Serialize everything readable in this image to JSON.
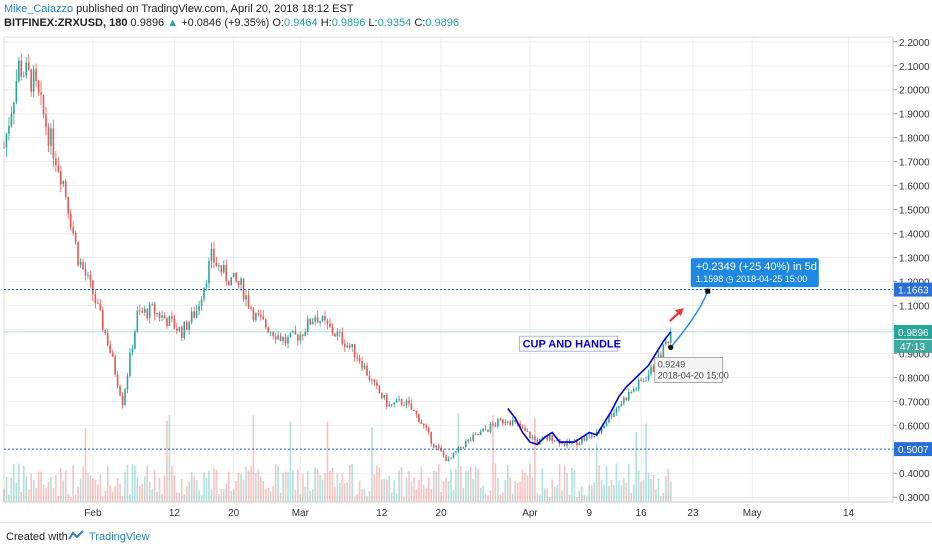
{
  "header": {
    "author": "Mike_Caiazzo",
    "published": "published on TradingView.com, April 20, 2018 18:12 EST",
    "symbol": "BITFINEX:ZRXUSD, 180",
    "last": "0.9896",
    "arrow": "▲",
    "change": "+0.0846 (+9.35%)",
    "o_label": "O:",
    "o": "0.9464",
    "h_label": "H:",
    "h": "0.9896",
    "l_label": "L:",
    "l": "0.9354",
    "c_label": "C:",
    "c": "0.9896"
  },
  "footer": {
    "created": "Created with",
    "brand": "TradingView"
  },
  "colors": {
    "up": "#26a69a",
    "down": "#ef5350",
    "pattern": "#0000d6",
    "projection": "#1e88e5",
    "hline": "#1e5fc4",
    "arrow": "#e53935",
    "label_bg": "#1e88e5",
    "price_tag": "#26a69a",
    "countdown_tag": "#3fa9a3",
    "level_tag": "#2a6fd6",
    "grid": "#eeeeee"
  },
  "chart_data": {
    "type": "candlestick",
    "y_ticks": [
      "2.2000",
      "2.1000",
      "2.0000",
      "1.9000",
      "1.8000",
      "1.7000",
      "1.6000",
      "1.5000",
      "1.4000",
      "1.3000",
      "1.2000",
      "1.1000",
      "1.0000",
      "0.9000",
      "0.8000",
      "0.7000",
      "0.6000",
      "0.5000",
      "0.4000",
      "0.3000"
    ],
    "ylim": [
      0.28,
      2.22
    ],
    "x_ticks": [
      "Feb",
      "12",
      "20",
      "Mar",
      "12",
      "20",
      "Apr",
      "9",
      "16",
      "23",
      "May",
      "14"
    ],
    "x_tick_dates": [
      "2018-02-01",
      "2018-02-12",
      "2018-02-20",
      "2018-03-01",
      "2018-03-12",
      "2018-03-20",
      "2018-04-01",
      "2018-04-09",
      "2018-04-16",
      "2018-04-23",
      "2018-05-01",
      "2018-05-14"
    ],
    "xlim": [
      "2018-01-20",
      "2018-05-20"
    ],
    "price_path": [
      [
        "2018-01-20",
        1.76
      ],
      [
        "2018-01-22",
        2.1
      ],
      [
        "2018-01-24",
        2.03
      ],
      [
        "2018-01-26",
        1.82
      ],
      [
        "2018-01-28",
        1.62
      ],
      [
        "2018-01-30",
        1.3
      ],
      [
        "2018-02-01",
        1.15
      ],
      [
        "2018-02-03",
        0.95
      ],
      [
        "2018-02-05",
        0.7
      ],
      [
        "2018-02-07",
        1.06
      ],
      [
        "2018-02-09",
        1.08
      ],
      [
        "2018-02-11",
        1.04
      ],
      [
        "2018-02-13",
        0.99
      ],
      [
        "2018-02-15",
        1.08
      ],
      [
        "2018-02-17",
        1.3
      ],
      [
        "2018-02-19",
        1.22
      ],
      [
        "2018-02-21",
        1.18
      ],
      [
        "2018-02-23",
        1.05
      ],
      [
        "2018-02-25",
        1.0
      ],
      [
        "2018-02-27",
        0.95
      ],
      [
        "2018-03-01",
        0.98
      ],
      [
        "2018-03-03",
        1.06
      ],
      [
        "2018-03-05",
        1.0
      ],
      [
        "2018-03-07",
        0.95
      ],
      [
        "2018-03-09",
        0.88
      ],
      [
        "2018-03-11",
        0.76
      ],
      [
        "2018-03-13",
        0.68
      ],
      [
        "2018-03-15",
        0.7
      ],
      [
        "2018-03-17",
        0.63
      ],
      [
        "2018-03-19",
        0.52
      ],
      [
        "2018-03-21",
        0.45
      ],
      [
        "2018-03-23",
        0.52
      ],
      [
        "2018-03-25",
        0.56
      ],
      [
        "2018-03-27",
        0.6
      ],
      [
        "2018-03-29",
        0.63
      ],
      [
        "2018-03-31",
        0.58
      ],
      [
        "2018-04-02",
        0.53
      ],
      [
        "2018-04-04",
        0.55
      ],
      [
        "2018-04-06",
        0.52
      ],
      [
        "2018-04-08",
        0.54
      ],
      [
        "2018-04-10",
        0.56
      ],
      [
        "2018-04-12",
        0.65
      ],
      [
        "2018-04-14",
        0.72
      ],
      [
        "2018-04-16",
        0.78
      ],
      [
        "2018-04-18",
        0.85
      ],
      [
        "2018-04-20",
        0.9896
      ]
    ],
    "volume_max_frac": 0.35,
    "horizontal_levels": [
      {
        "value": 1.1663,
        "label": "1.1663"
      },
      {
        "value": 0.5007,
        "label": "0.5007"
      }
    ],
    "current_price": {
      "value": 0.9896,
      "label": "0.9896",
      "countdown": "47:13"
    },
    "pattern_line": [
      [
        "2018-03-29",
        0.67
      ],
      [
        "2018-03-30",
        0.63
      ],
      [
        "2018-03-31",
        0.57
      ],
      [
        "2018-04-01",
        0.53
      ],
      [
        "2018-04-02",
        0.52
      ],
      [
        "2018-04-03",
        0.55
      ],
      [
        "2018-04-04",
        0.57
      ],
      [
        "2018-04-05",
        0.53
      ],
      [
        "2018-04-06",
        0.53
      ],
      [
        "2018-04-07",
        0.53
      ],
      [
        "2018-04-08",
        0.55
      ],
      [
        "2018-04-09",
        0.57
      ],
      [
        "2018-04-10",
        0.56
      ],
      [
        "2018-04-11",
        0.61
      ],
      [
        "2018-04-12",
        0.66
      ],
      [
        "2018-04-13",
        0.72
      ],
      [
        "2018-04-14",
        0.76
      ],
      [
        "2018-04-15",
        0.79
      ],
      [
        "2018-04-16",
        0.82
      ],
      [
        "2018-04-17",
        0.85
      ],
      [
        "2018-04-18",
        0.9
      ],
      [
        "2018-04-19",
        0.95
      ],
      [
        "2018-04-20",
        0.99
      ]
    ],
    "projection": [
      [
        "2018-04-20",
        0.9249
      ],
      [
        "2018-04-22",
        1.0
      ],
      [
        "2018-04-24",
        1.08
      ],
      [
        "2018-04-25",
        1.1598
      ]
    ],
    "annotations": {
      "pattern_label": "CUP AND HANDLE",
      "start_value": "0.9249",
      "start_date": "2018-04-20 15:00",
      "target_change": "+0.2349 (+25.40%) in 5d",
      "target_value": "1.1598",
      "target_date": "2018-04-25  15:00"
    }
  }
}
